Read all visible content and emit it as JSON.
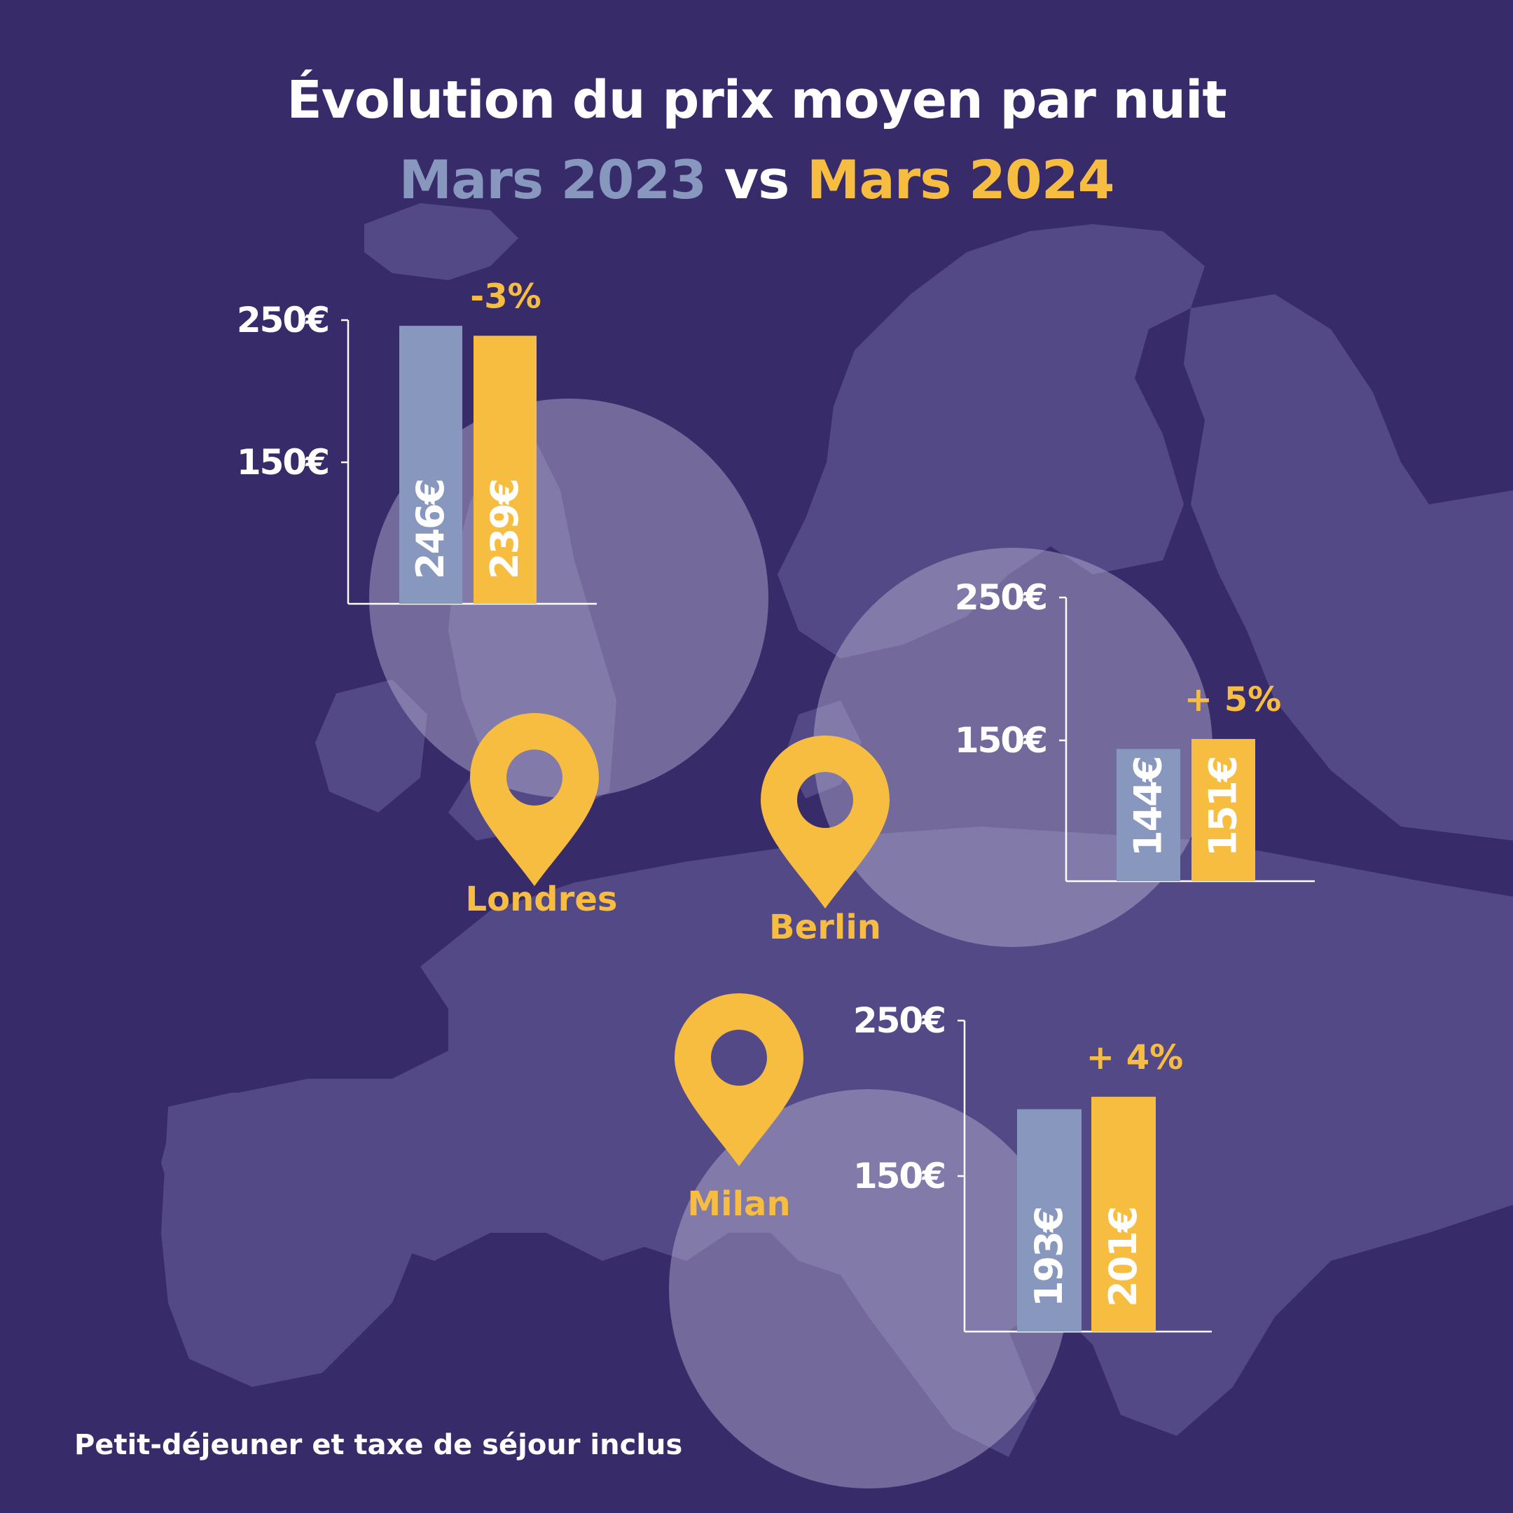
{
  "title": "Évolution du prix moyen par nuit",
  "subtitle": {
    "left": "Mars 2023",
    "middle": "vs",
    "right": "Mars 2024"
  },
  "footnote": "Petit-déjeuner et taxe de séjour inclus",
  "colors": {
    "background": "#382b6a",
    "land": "#524986",
    "circle": "#bdb8d8",
    "series_2023": "#8797bd",
    "series_2024": "#f6bd41",
    "text": "#ffffff"
  },
  "icons": [
    "map-pin-icon"
  ],
  "chart_data": [
    {
      "type": "bar",
      "city": "Londres",
      "categories": [
        "Mars 2023",
        "Mars 2024"
      ],
      "values": [
        246,
        239
      ],
      "value_labels": [
        "246€",
        "239€"
      ],
      "change_label": "-3%",
      "y_ticks": [
        150,
        250
      ],
      "y_tick_labels": [
        "150€",
        "250€"
      ],
      "ylim": [
        50,
        250
      ]
    },
    {
      "type": "bar",
      "city": "Berlin",
      "categories": [
        "Mars 2023",
        "Mars 2024"
      ],
      "values": [
        144,
        151
      ],
      "value_labels": [
        "144€",
        "151€"
      ],
      "change_label": "+ 5%",
      "y_ticks": [
        150,
        250
      ],
      "y_tick_labels": [
        "150€",
        "250€"
      ],
      "ylim": [
        50,
        250
      ]
    },
    {
      "type": "bar",
      "city": "Milan",
      "categories": [
        "Mars 2023",
        "Mars 2024"
      ],
      "values": [
        193,
        201
      ],
      "value_labels": [
        "193€",
        "201€"
      ],
      "change_label": "+ 4%",
      "y_ticks": [
        150,
        250
      ],
      "y_tick_labels": [
        "150€",
        "250€"
      ],
      "ylim": [
        50,
        250
      ]
    }
  ]
}
